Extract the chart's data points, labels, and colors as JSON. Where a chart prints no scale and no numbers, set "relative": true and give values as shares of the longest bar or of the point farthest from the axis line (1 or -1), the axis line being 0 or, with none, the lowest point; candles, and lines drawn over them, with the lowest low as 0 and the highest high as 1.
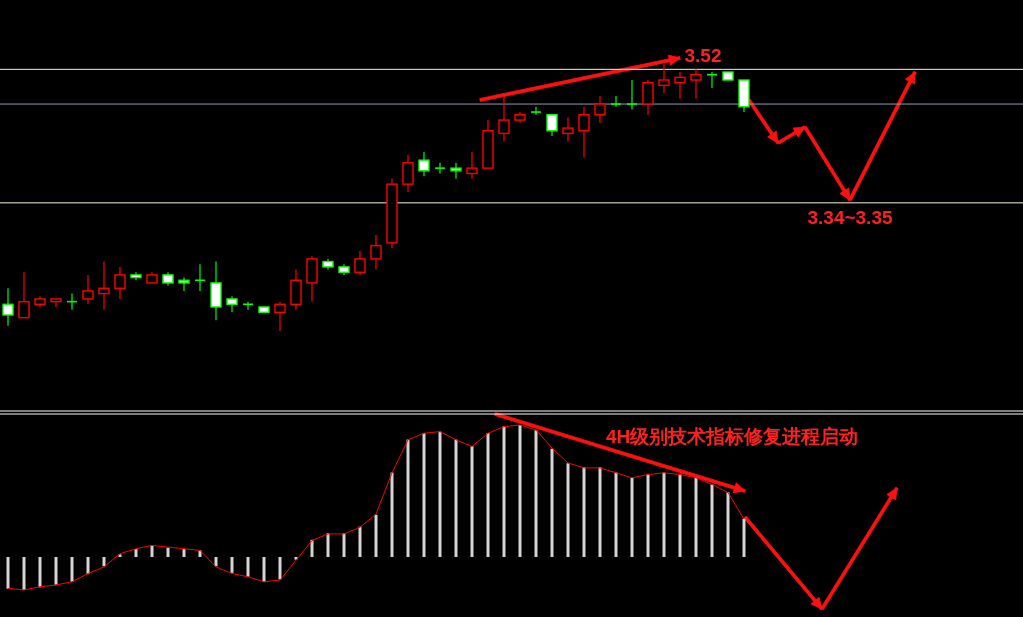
{
  "chart_data": [
    {
      "type": "candlestick",
      "relative": true,
      "categories": [
        null,
        null,
        null,
        null,
        null,
        null,
        null,
        null,
        null,
        null,
        null,
        null,
        null,
        null,
        null,
        null,
        null,
        null,
        null,
        null,
        null,
        null,
        null,
        null,
        null,
        null,
        null,
        null,
        null,
        null,
        null,
        null,
        null,
        null,
        null,
        null,
        null,
        null,
        null,
        null,
        null,
        null,
        null,
        null,
        null,
        null,
        null
      ],
      "ohlc": [
        [
          0.1,
          0.16,
          0.02,
          0.06
        ],
        [
          0.05,
          0.22,
          0.05,
          0.11
        ],
        [
          0.1,
          0.13,
          0.09,
          0.12
        ],
        [
          0.11,
          0.12,
          0.09,
          0.12
        ],
        [
          0.11,
          0.14,
          0.08,
          0.11
        ],
        [
          0.12,
          0.21,
          0.1,
          0.15
        ],
        [
          0.14,
          0.26,
          0.08,
          0.16
        ],
        [
          0.16,
          0.24,
          0.12,
          0.21
        ],
        [
          0.21,
          0.22,
          0.19,
          0.2
        ],
        [
          0.18,
          0.22,
          0.18,
          0.21
        ],
        [
          0.21,
          0.22,
          0.17,
          0.18
        ],
        [
          0.19,
          0.2,
          0.15,
          0.18
        ],
        [
          0.19,
          0.25,
          0.15,
          0.19
        ],
        [
          0.18,
          0.26,
          0.04,
          0.09
        ],
        [
          0.12,
          0.13,
          0.07,
          0.1
        ],
        [
          0.1,
          0.11,
          0.08,
          0.1
        ],
        [
          0.09,
          0.09,
          0.07,
          0.07
        ],
        [
          0.07,
          0.11,
          0.0,
          0.1
        ],
        [
          0.1,
          0.23,
          0.08,
          0.19
        ],
        [
          0.18,
          0.28,
          0.11,
          0.27
        ],
        [
          0.26,
          0.27,
          0.23,
          0.24
        ],
        [
          0.24,
          0.25,
          0.21,
          0.22
        ],
        [
          0.22,
          0.3,
          0.21,
          0.27
        ],
        [
          0.27,
          0.36,
          0.23,
          0.32
        ],
        [
          0.33,
          0.57,
          0.31,
          0.55
        ],
        [
          0.55,
          0.66,
          0.52,
          0.63
        ],
        [
          0.64,
          0.67,
          0.58,
          0.6
        ],
        [
          0.61,
          0.63,
          0.59,
          0.61
        ],
        [
          0.61,
          0.63,
          0.57,
          0.6
        ],
        [
          0.59,
          0.67,
          0.57,
          0.61
        ],
        [
          0.61,
          0.79,
          0.61,
          0.75
        ],
        [
          0.74,
          0.88,
          0.71,
          0.79
        ],
        [
          0.79,
          0.82,
          0.78,
          0.81
        ],
        [
          0.82,
          0.84,
          0.81,
          0.82
        ],
        [
          0.81,
          0.81,
          0.73,
          0.75
        ],
        [
          0.74,
          0.8,
          0.71,
          0.76
        ],
        [
          0.75,
          0.84,
          0.65,
          0.81
        ],
        [
          0.81,
          0.88,
          0.78,
          0.85
        ],
        [
          0.85,
          0.88,
          0.84,
          0.85
        ],
        [
          0.85,
          0.94,
          0.83,
          0.85
        ],
        [
          0.85,
          0.94,
          0.81,
          0.93
        ],
        [
          0.92,
          1.0,
          0.89,
          0.94
        ],
        [
          0.93,
          0.97,
          0.87,
          0.95
        ],
        [
          0.94,
          0.98,
          0.87,
          0.96
        ],
        [
          0.96,
          0.97,
          0.91,
          0.96
        ],
        [
          0.97,
          0.97,
          0.94,
          0.94
        ],
        [
          0.94,
          0.94,
          0.82,
          0.84
        ]
      ],
      "ref_lines": [
        {
          "axis": "y",
          "value": 0.98,
          "color": "#f4f4e0"
        },
        {
          "axis": "y",
          "value": 0.85,
          "color": "#8c9ab8"
        },
        {
          "axis": "y",
          "value": 0.48,
          "color": "#f4f4e0"
        }
      ],
      "annotations": [
        "3.52",
        "3.34~3.35"
      ]
    },
    {
      "type": "bar",
      "relative": true,
      "categories": [
        null,
        null,
        null,
        null,
        null,
        null,
        null,
        null,
        null,
        null,
        null,
        null,
        null,
        null,
        null,
        null,
        null,
        null,
        null,
        null,
        null,
        null,
        null,
        null,
        null,
        null,
        null,
        null,
        null,
        null,
        null,
        null,
        null,
        null,
        null,
        null,
        null,
        null,
        null,
        null,
        null,
        null,
        null,
        null,
        null,
        null,
        null
      ],
      "series": [
        {
          "type": "bar",
          "color": "#d4d4d4",
          "values": [
            -0.24,
            -0.25,
            -0.23,
            -0.21,
            -0.19,
            -0.13,
            -0.07,
            0.02,
            0.06,
            0.09,
            0.07,
            0.06,
            0.05,
            -0.07,
            -0.12,
            -0.15,
            -0.19,
            -0.17,
            -0.02,
            0.13,
            0.18,
            0.18,
            0.23,
            0.32,
            0.64,
            0.89,
            0.94,
            0.95,
            0.89,
            0.84,
            0.94,
            0.99,
            1.0,
            0.96,
            0.82,
            0.71,
            0.68,
            0.68,
            0.64,
            0.6,
            0.63,
            0.64,
            0.63,
            0.6,
            0.55,
            0.49,
            0.29
          ]
        }
      ],
      "annotations": [
        "4H级别技术指标修复进程启动"
      ]
    },
    {
      "type": "line",
      "relative": true,
      "categories": [
        null,
        null,
        null,
        null,
        null,
        null,
        null,
        null,
        null,
        null,
        null,
        null,
        null,
        null,
        null,
        null,
        null,
        null,
        null,
        null,
        null,
        null,
        null,
        null,
        null,
        null,
        null,
        null,
        null,
        null,
        null,
        null,
        null,
        null,
        null,
        null,
        null,
        null,
        null,
        null,
        null,
        null,
        null,
        null,
        null,
        null,
        null
      ],
      "series": [
        {
          "type": "line",
          "color": "#ff0000",
          "values": [
            0.01,
            0.0,
            0.02,
            0.03,
            0.05,
            0.1,
            0.14,
            0.22,
            0.25,
            0.27,
            0.26,
            0.25,
            0.24,
            0.14,
            0.1,
            0.08,
            0.05,
            0.06,
            0.18,
            0.3,
            0.34,
            0.34,
            0.38,
            0.46,
            0.71,
            0.91,
            0.95,
            0.96,
            0.91,
            0.87,
            0.95,
            0.99,
            1.0,
            0.97,
            0.86,
            0.77,
            0.74,
            0.74,
            0.71,
            0.68,
            0.7,
            0.71,
            0.7,
            0.68,
            0.64,
            0.59,
            0.43
          ]
        }
      ]
    }
  ]
}
